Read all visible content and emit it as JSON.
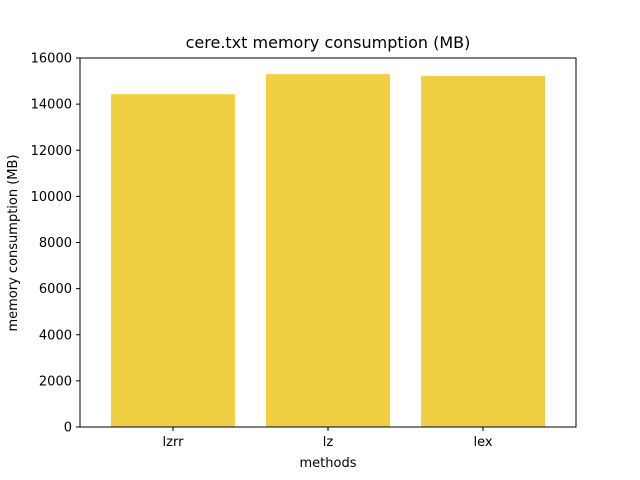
{
  "chart_data": {
    "type": "bar",
    "title": "cere.txt memory consumption (MB)",
    "xlabel": "methods",
    "ylabel": "memory consumption (MB)",
    "categories": [
      "lzrr",
      "lz",
      "lex"
    ],
    "values": [
      14430,
      15300,
      15220
    ],
    "ylim": [
      0,
      16000
    ],
    "yticks": [
      "0",
      "2000",
      "4000",
      "6000",
      "8000",
      "10000",
      "12000",
      "14000",
      "16000"
    ],
    "bar_color": "#f0d042",
    "grid": false,
    "legend": "none"
  }
}
